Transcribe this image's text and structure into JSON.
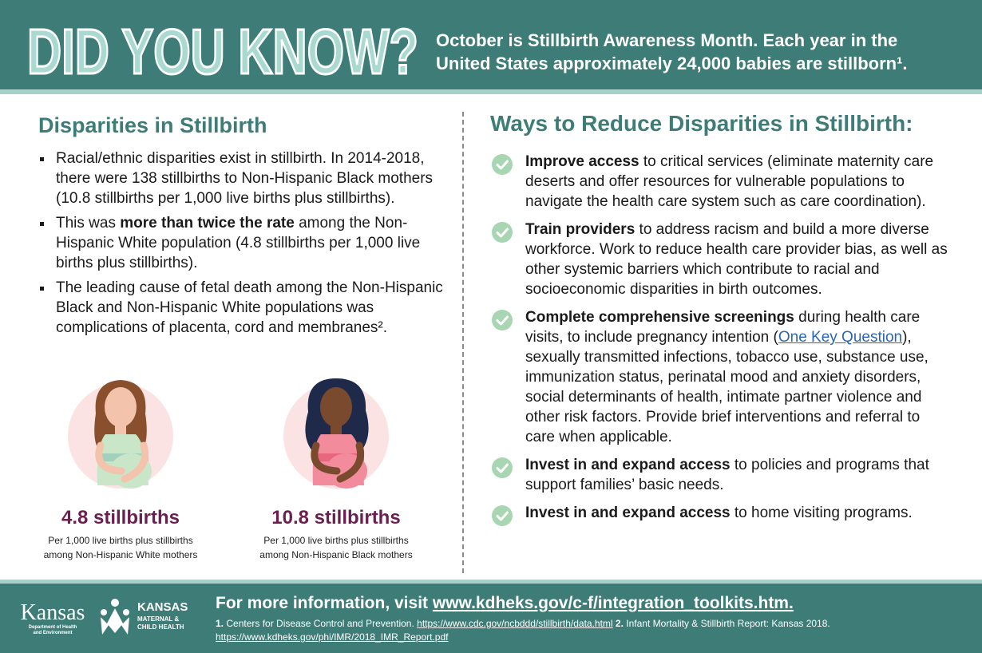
{
  "header": {
    "hero_text": "DID YOU KNOW?",
    "intro_line1": "October is Stillbirth Awareness Month. Each year in the",
    "intro_line2": "United States approximately 24,000 babies are stillborn¹."
  },
  "left": {
    "title": "Disparities in Stillbirth",
    "bullets": [
      "Racial/ethnic disparities exist in stillbirth. In 2014-2018, there were 138 stillbirths to Non-Hispanic Black mothers (10.8 stillbirths per 1,000 live births plus stillbirths).",
      {
        "pre": "This was ",
        "bold": "more than twice the rate",
        "post": " among the Non-Hispanic White population (4.8 stillbirths per 1,000 live births plus stillbirths)."
      },
      "The leading cause of fetal death among the Non-Hispanic Black and Non-Hispanic White populations was complications of placenta, cord and membranes²."
    ],
    "figures": [
      {
        "value": "4.8 stillbirths",
        "desc_line1": "Per 1,000 live births plus stillbirths",
        "desc_line2": "among Non-Hispanic White mothers"
      },
      {
        "value": "10.8 stillbirths",
        "desc_line1": "Per 1,000 live births plus stillbirths",
        "desc_line2": "among Non-Hispanic Black mothers"
      }
    ]
  },
  "right": {
    "title": "Ways to Reduce Disparities in Stillbirth:",
    "items": [
      {
        "bold": "Improve access",
        "text": " to critical services (eliminate maternity care deserts and offer resources for vulnerable populations to navigate the health care system such as care coordination)."
      },
      {
        "bold": "Train providers",
        "text": " to address racism and build a more diverse workforce. Work to reduce health care provider bias, as well as other systemic barriers which contribute to racial and socioeconomic disparities in birth outcomes."
      },
      {
        "bold": "Complete comprehensive screenings",
        "text": " during health care visits, to include pregnancy intention (",
        "link": "One Key Question",
        "text2": "), sexually transmitted infections, tobacco use, substance use, immunization status, perinatal mood and anxiety disorders, social determinants of health, intimate partner violence and other risk factors. Provide brief interventions and referral to care when applicable."
      },
      {
        "bold": "Invest in and expand access",
        "text": " to policies and programs that support families’ basic needs."
      },
      {
        "bold": "Invest in and expand access",
        "text": " to home visiting programs."
      }
    ]
  },
  "footer": {
    "kansas_logo_word": "Kansas",
    "kansas_logo_sub1": "Department of Health",
    "kansas_logo_sub2": "and Environment",
    "mch_title": "KANSAS",
    "mch_sub1": "MATERNAL &",
    "mch_sub2": "CHILD HEALTH",
    "info_prefix": "For more information, visit ",
    "info_url": "www.kdheks.gov/c-f/integration_toolkits.htm.",
    "ref1_num": "1.",
    "ref1_text": " Centers for Disease Control and Prevention. ",
    "ref1_url": "https://www.cdc.gov/ncbddd/stillbirth/data.html",
    "ref2_num": " 2.",
    "ref2_text": " Infant Mortality & Stillbirth Report: Kansas 2018. ",
    "ref2_url": "https://www.kdheks.gov/phi/IMR/2018_IMR_Report.pdf"
  },
  "colors": {
    "teal": "#3e7d77",
    "teal_light": "#a9cfc9",
    "stat_purple": "#6b1f4e",
    "link_blue": "#2b66b5",
    "check_green": "#a9d6b2"
  }
}
